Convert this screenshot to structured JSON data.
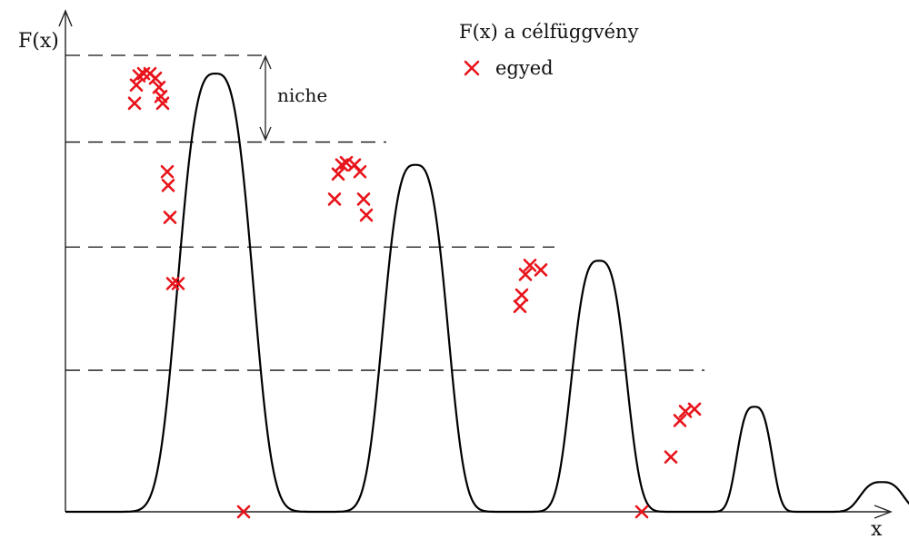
{
  "labels": {
    "y_axis": "F(x)",
    "x_axis": "x",
    "niche": "niche"
  },
  "legend": {
    "function_label": "F(x) a célfüggvény",
    "individual_label": "egyed",
    "individual_marker_icon": "cross-icon"
  },
  "colors": {
    "curve": "#000000",
    "marker": "#e8141b",
    "dashed": "#111111"
  },
  "chart_data": {
    "type": "line",
    "title": "",
    "xlabel": "x",
    "ylabel": "F(x)",
    "xlim": [
      0,
      1000
    ],
    "ylim": [
      0,
      100
    ],
    "peaks": [
      {
        "center": 165,
        "height": 96,
        "width": 38
      },
      {
        "center": 385,
        "height": 76,
        "width": 33
      },
      {
        "center": 587,
        "height": 55,
        "width": 28
      },
      {
        "center": 758,
        "height": 23,
        "width": 18
      },
      {
        "center": 898,
        "height": 6.5,
        "width": 22
      }
    ],
    "niche_levels": [
      {
        "y": 100,
        "x_end": 290
      },
      {
        "y": 81,
        "x_end": 425
      },
      {
        "y": 58,
        "x_end": 610
      },
      {
        "y": 31,
        "x_end": 775
      }
    ],
    "individuals": [
      {
        "x": 148,
        "y": 89.5
      },
      {
        "x": 150,
        "y": 93.5
      },
      {
        "x": 153,
        "y": 95.5
      },
      {
        "x": 158,
        "y": 96
      },
      {
        "x": 165,
        "y": 96
      },
      {
        "x": 171,
        "y": 95
      },
      {
        "x": 175,
        "y": 93
      },
      {
        "x": 177,
        "y": 91
      },
      {
        "x": 179,
        "y": 89.5
      },
      {
        "x": 184,
        "y": 74.5
      },
      {
        "x": 185,
        "y": 71.5
      },
      {
        "x": 187,
        "y": 64.5
      },
      {
        "x": 190,
        "y": 50
      },
      {
        "x": 196,
        "y": 50
      },
      {
        "x": 368,
        "y": 68.5
      },
      {
        "x": 372,
        "y": 74
      },
      {
        "x": 376,
        "y": 76
      },
      {
        "x": 381,
        "y": 76.5
      },
      {
        "x": 390,
        "y": 76
      },
      {
        "x": 396,
        "y": 74.5
      },
      {
        "x": 400,
        "y": 68.5
      },
      {
        "x": 403,
        "y": 65
      },
      {
        "x": 572,
        "y": 45
      },
      {
        "x": 574,
        "y": 47.5
      },
      {
        "x": 578,
        "y": 52
      },
      {
        "x": 583,
        "y": 54
      },
      {
        "x": 595,
        "y": 53
      },
      {
        "x": 738,
        "y": 12
      },
      {
        "x": 748,
        "y": 20
      },
      {
        "x": 754,
        "y": 22
      },
      {
        "x": 764,
        "y": 22.5
      },
      {
        "x": 268,
        "y": 0
      },
      {
        "x": 706,
        "y": 0
      }
    ]
  }
}
